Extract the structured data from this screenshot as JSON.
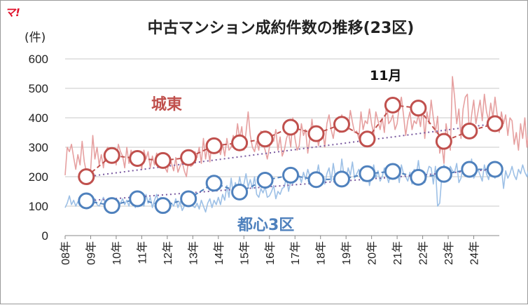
{
  "chart_data": {
    "type": "line",
    "logo": "マ!",
    "title": "中古マンション成約件数の推移(23区)",
    "unit_label": "(件)",
    "ylim": [
      0,
      600
    ],
    "y_ticks": [
      0,
      100,
      200,
      300,
      400,
      500,
      600
    ],
    "grid": true,
    "x_tick_labels": [
      "08年",
      "09年",
      "10年",
      "11年",
      "12年",
      "13年",
      "14年",
      "15年",
      "16年",
      "17年",
      "18年",
      "19年",
      "20年",
      "21年",
      "22年",
      "23年",
      "24年"
    ],
    "annotation": "11月",
    "colors": {
      "joto": "#c0504d",
      "joto_monthly": "#e6a0a0",
      "toshin": "#4f81bd",
      "toshin_monthly": "#9dc0e6",
      "trend": "#7a5aa0",
      "grid": "#c8c8c8"
    },
    "series": [
      {
        "name": "城東",
        "kind": "november_points",
        "x": [
          2008.83,
          2009.83,
          2010.83,
          2011.83,
          2012.83,
          2013.83,
          2014.83,
          2015.83,
          2016.83,
          2017.83,
          2018.83,
          2019.83,
          2020.83,
          2021.83,
          2022.83,
          2023.83,
          2024.83
        ],
        "values": [
          200,
          272,
          262,
          255,
          265,
          305,
          315,
          328,
          368,
          346,
          378,
          328,
          443,
          433,
          320,
          355,
          380
        ]
      },
      {
        "name": "都心3区",
        "kind": "november_points",
        "x": [
          2008.83,
          2009.83,
          2010.83,
          2011.83,
          2012.83,
          2013.83,
          2014.83,
          2015.83,
          2016.83,
          2017.83,
          2018.83,
          2019.83,
          2020.83,
          2021.83,
          2022.83,
          2023.83,
          2024.83
        ],
        "values": [
          118,
          102,
          125,
          102,
          125,
          178,
          148,
          188,
          205,
          190,
          192,
          210,
          218,
          198,
          208,
          225,
          225
        ]
      },
      {
        "kind": "monthly",
        "start": 2008.0,
        "values": [
          205,
          300,
          285,
          310,
          265,
          225,
          275,
          240,
          320,
          250,
          215,
          200,
          225,
          340,
          260,
          300,
          240,
          275,
          230,
          285,
          300,
          260,
          270,
          285,
          240,
          310,
          285,
          270,
          230,
          300,
          245,
          290,
          260,
          280,
          255,
          270,
          225,
          290,
          260,
          285,
          230,
          270,
          240,
          280,
          255,
          250,
          270,
          230,
          215,
          270,
          245,
          220,
          265,
          215,
          235,
          250,
          220,
          200,
          260,
          235,
          240,
          285,
          265,
          300,
          245,
          330,
          260,
          305,
          250,
          330,
          290,
          300,
          300,
          275,
          310,
          270,
          330,
          290,
          300,
          340,
          310,
          380,
          330,
          370,
          290,
          350,
          420,
          340,
          300,
          285,
          320,
          290,
          355,
          310,
          290,
          260,
          300,
          340,
          320,
          360,
          290,
          335,
          270,
          290,
          330,
          350,
          300,
          400,
          330,
          290,
          305,
          380,
          340,
          360,
          280,
          330,
          395,
          330,
          360,
          305,
          340,
          360,
          300,
          380,
          410,
          360,
          330,
          380,
          390,
          350,
          410,
          360,
          400,
          360,
          425,
          385,
          350,
          355,
          330,
          420,
          360,
          390,
          380,
          430,
          380,
          345,
          420,
          390,
          360,
          400,
          350,
          450,
          380,
          390,
          410,
          360,
          380,
          440,
          470,
          410,
          340,
          390,
          420,
          360,
          390,
          380,
          410,
          370,
          440,
          330,
          420,
          380,
          460,
          400,
          350,
          405,
          280,
          310,
          245,
          380,
          330,
          290,
          540,
          470,
          380,
          430,
          330,
          430,
          470,
          480,
          340,
          410,
          460,
          380,
          420,
          460,
          390,
          480,
          420,
          390,
          450,
          400,
          470,
          410,
          350,
          420,
          380,
          410,
          340,
          400,
          390,
          310,
          350,
          290,
          380,
          330,
          400,
          300,
          360,
          330,
          410,
          320,
          340,
          360,
          385,
          350,
          420,
          300,
          380,
          345,
          490,
          360,
          410,
          345,
          375,
          390
        ]
      },
      {
        "kind": "monthly",
        "start": 2008.0,
        "values": [
          95,
          110,
          135,
          105,
          120,
          100,
          115,
          105,
          130,
          110,
          95,
          120,
          100,
          110,
          125,
          105,
          100,
          115,
          130,
          105,
          95,
          110,
          120,
          100,
          115,
          90,
          110,
          125,
          105,
          120,
          100,
          135,
          110,
          95,
          130,
          105,
          115,
          100,
          140,
          110,
          130,
          95,
          120,
          140,
          105,
          130,
          110,
          100,
          120,
          90,
          110,
          100,
          125,
          95,
          115,
          85,
          100,
          120,
          110,
          105,
          100,
          95,
          110,
          90,
          120,
          100,
          80,
          110,
          125,
          95,
          120,
          105,
          130,
          105,
          140,
          120,
          170,
          130,
          195,
          140,
          180,
          150,
          200,
          160,
          175,
          210,
          165,
          190,
          160,
          200,
          140,
          130,
          160,
          145,
          165,
          130,
          135,
          150,
          170,
          125,
          150,
          140,
          160,
          165,
          200,
          150,
          185,
          175,
          215,
          190,
          205,
          180,
          215,
          190,
          225,
          200,
          175,
          215,
          200,
          240,
          190,
          205,
          175,
          210,
          230,
          185,
          245,
          200,
          215,
          190,
          260,
          205,
          190,
          230,
          205,
          250,
          195,
          210,
          225,
          200,
          185,
          215,
          230,
          170,
          205,
          240,
          195,
          220,
          185,
          200,
          230,
          205,
          180,
          215,
          210,
          195,
          225,
          180,
          240,
          210,
          200,
          185,
          215,
          175,
          225,
          205,
          255,
          195,
          220,
          180,
          210,
          235,
          230,
          175,
          235,
          100,
          110,
          200,
          240,
          225,
          190,
          235,
          220,
          215,
          245,
          180,
          195,
          240,
          205,
          230,
          215,
          260,
          195,
          210,
          225,
          205,
          185,
          240,
          210,
          190,
          230,
          205,
          195,
          250,
          215,
          230,
          160,
          220,
          195,
          210,
          235,
          205,
          190,
          225,
          210,
          240,
          215,
          200,
          230,
          215,
          245,
          220,
          205,
          210,
          235,
          215,
          250,
          190,
          225,
          230,
          200,
          215,
          245,
          225,
          240,
          205,
          220,
          215
        ]
      },
      {
        "kind": "trend",
        "x": [
          2008.83,
          2024.83
        ],
        "values": [
          200,
          380
        ]
      },
      {
        "kind": "trend",
        "x": [
          2008.83,
          2024.83
        ],
        "values": [
          118,
          225
        ]
      }
    ]
  }
}
